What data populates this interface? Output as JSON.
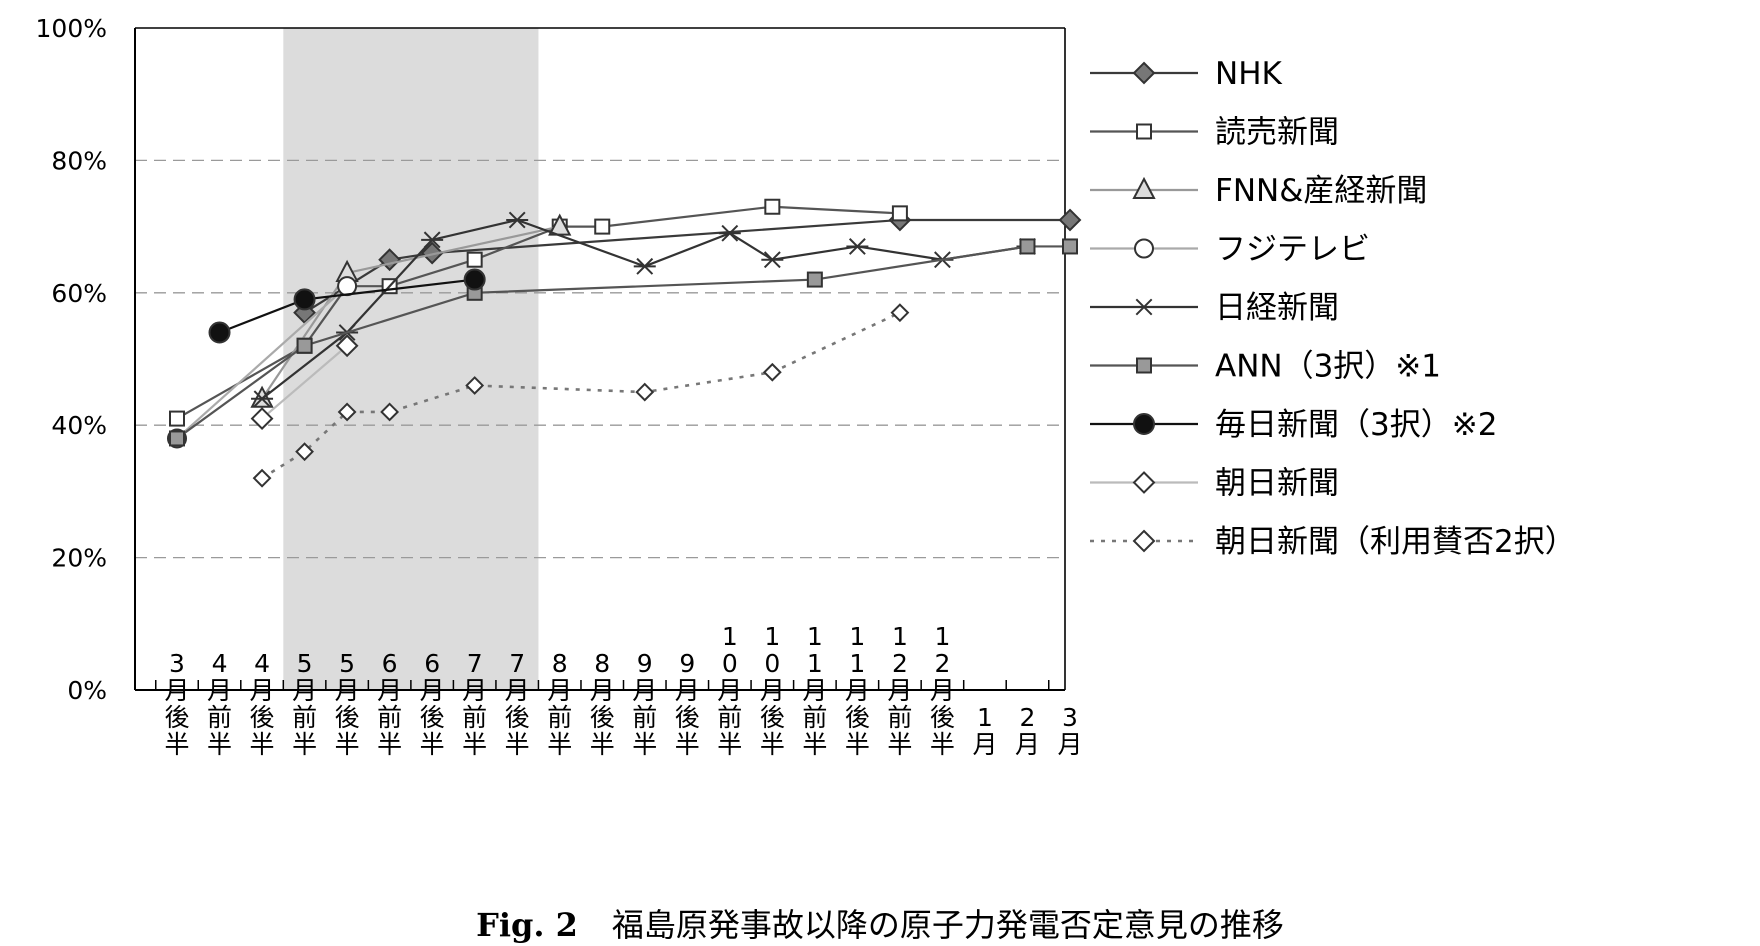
{
  "chart_data": {
    "type": "line",
    "categories": [
      "3月後半",
      "4月前半",
      "4月後半",
      "5月前半",
      "5月後半",
      "6月前半",
      "6月後半",
      "7月前半",
      "7月後半",
      "8月前半",
      "8月後半",
      "9月前半",
      "9月後半",
      "10月前半",
      "10月後半",
      "11月前半",
      "11月後半",
      "12月前半",
      "12月後半",
      "1月",
      "2月",
      "3月"
    ],
    "ylim": [
      0,
      100
    ],
    "yticks": [
      0,
      20,
      40,
      60,
      80,
      100
    ],
    "ytick_labels": [
      "0%",
      "20%",
      "40%",
      "60%",
      "80%",
      "100%"
    ],
    "grid": "horizontal dashed",
    "legend_position": "right",
    "highlight_band": {
      "from_category": "5月前半",
      "to_category": "7月後半",
      "color": "#dcdcdc"
    },
    "series": [
      {
        "name": "NHK",
        "color": "#3a3a3a",
        "marker": "diamond-filled",
        "marker_color": "#777777",
        "dash": "solid",
        "points": [
          [
            "5月前半",
            57
          ],
          [
            "6月前半",
            65
          ],
          [
            "6月後半",
            66
          ],
          [
            "12月前半",
            71
          ],
          [
            "3月",
            71
          ]
        ]
      },
      {
        "name": "読売新聞",
        "color": "#555555",
        "marker": "square-open",
        "marker_color": "#ffffff",
        "dash": "solid",
        "points": [
          [
            "3月後半",
            41
          ],
          [
            "5月前半",
            52
          ],
          [
            "5月後半",
            61
          ],
          [
            "6月前半",
            61
          ],
          [
            "7月前半",
            65
          ],
          [
            "8月前半",
            70
          ],
          [
            "8月後半",
            70
          ],
          [
            "10月後半",
            73
          ],
          [
            "12月前半",
            72
          ]
        ]
      },
      {
        "name": "FNN&産経新聞",
        "color": "#999999",
        "marker": "triangle-open",
        "marker_color": "#dddddd",
        "dash": "solid",
        "points": [
          [
            "4月後半",
            44
          ],
          [
            "5月後半",
            63
          ],
          [
            "8月前半",
            70
          ]
        ]
      },
      {
        "name": "フジテレビ",
        "color": "#aaaaaa",
        "marker": "circle-open",
        "marker_color": "#ffffff",
        "dash": "solid",
        "points": [
          [
            "3月後半",
            38
          ],
          [
            "5月後半",
            61
          ]
        ]
      },
      {
        "name": "日経新聞",
        "color": "#333333",
        "marker": "asterisk",
        "marker_color": "#333333",
        "dash": "solid",
        "points": [
          [
            "4月後半",
            44
          ],
          [
            "5月後半",
            54
          ],
          [
            "6月後半",
            68
          ],
          [
            "7月後半",
            71
          ],
          [
            "9月前半",
            64
          ],
          [
            "10月前半",
            69
          ],
          [
            "10月後半",
            65
          ],
          [
            "11月後半",
            67
          ],
          [
            "12月後半",
            65
          ],
          [
            "2月",
            67
          ]
        ]
      },
      {
        "name": "ANN（3択）※1",
        "color": "#555555",
        "marker": "square-filled",
        "marker_color": "#999999",
        "dash": "solid",
        "points": [
          [
            "3月後半",
            38
          ],
          [
            "5月前半",
            52
          ],
          [
            "7月前半",
            60
          ],
          [
            "11月前半",
            62
          ],
          [
            "2月",
            67
          ],
          [
            "3月",
            67
          ]
        ]
      },
      {
        "name": "毎日新聞（3択）※2",
        "color": "#111111",
        "marker": "circle-filled",
        "marker_color": "#111111",
        "dash": "solid",
        "points": [
          [
            "4月前半",
            54
          ],
          [
            "5月前半",
            59
          ],
          [
            "7月前半",
            62
          ]
        ]
      },
      {
        "name": "朝日新聞",
        "color": "#bbbbbb",
        "marker": "diamond-open",
        "marker_color": "#ffffff",
        "dash": "solid",
        "points": [
          [
            "4月後半",
            41
          ],
          [
            "5月後半",
            52
          ]
        ]
      },
      {
        "name": "朝日新聞（利用賛否2択）",
        "color": "#777777",
        "marker": "diamond-open",
        "marker_color": "#ffffff",
        "dash": "dotted",
        "points": [
          [
            "4月後半",
            32
          ],
          [
            "5月前半",
            36
          ],
          [
            "5月後半",
            42
          ],
          [
            "6月前半",
            42
          ],
          [
            "7月前半",
            46
          ],
          [
            "9月前半",
            45
          ],
          [
            "10月後半",
            48
          ],
          [
            "12月前半",
            57
          ]
        ]
      }
    ]
  },
  "caption": {
    "fig_label": "Fig. 2",
    "text": "福島原発事故以降の原子力発電否定意見の推移"
  }
}
